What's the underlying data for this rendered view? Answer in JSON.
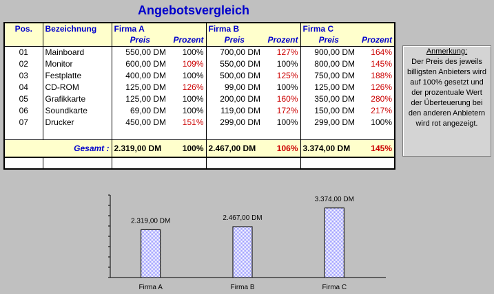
{
  "title": "Angebotsvergleich",
  "headers": {
    "pos": "Pos.",
    "bezeichnung": "Bezeichnung",
    "firmen": [
      "Firma A",
      "Firma B",
      "Firma C"
    ],
    "preis": "Preis",
    "prozent": "Prozent"
  },
  "rows": [
    {
      "pos": "01",
      "name": "Mainboard",
      "cells": [
        [
          "550,00 DM",
          "100%",
          false
        ],
        [
          "700,00 DM",
          "127%",
          true
        ],
        [
          "900,00 DM",
          "164%",
          true
        ]
      ]
    },
    {
      "pos": "02",
      "name": "Monitor",
      "cells": [
        [
          "600,00 DM",
          "109%",
          true
        ],
        [
          "550,00 DM",
          "100%",
          false
        ],
        [
          "800,00 DM",
          "145%",
          true
        ]
      ]
    },
    {
      "pos": "03",
      "name": "Festplatte",
      "cells": [
        [
          "400,00 DM",
          "100%",
          false
        ],
        [
          "500,00 DM",
          "125%",
          true
        ],
        [
          "750,00 DM",
          "188%",
          true
        ]
      ]
    },
    {
      "pos": "04",
      "name": "CD-ROM",
      "cells": [
        [
          "125,00 DM",
          "126%",
          true
        ],
        [
          "99,00 DM",
          "100%",
          false
        ],
        [
          "125,00 DM",
          "126%",
          true
        ]
      ]
    },
    {
      "pos": "05",
      "name": "Grafikkarte",
      "cells": [
        [
          "125,00 DM",
          "100%",
          false
        ],
        [
          "200,00 DM",
          "160%",
          true
        ],
        [
          "350,00 DM",
          "280%",
          true
        ]
      ]
    },
    {
      "pos": "06",
      "name": "Soundkarte",
      "cells": [
        [
          "69,00 DM",
          "100%",
          false
        ],
        [
          "119,00 DM",
          "172%",
          true
        ],
        [
          "150,00 DM",
          "217%",
          true
        ]
      ]
    },
    {
      "pos": "07",
      "name": "Drucker",
      "cells": [
        [
          "450,00 DM",
          "151%",
          true
        ],
        [
          "299,00 DM",
          "100%",
          false
        ],
        [
          "299,00 DM",
          "100%",
          false
        ]
      ]
    }
  ],
  "total": {
    "label": "Gesamt :",
    "cells": [
      [
        "2.319,00 DM",
        "100%",
        false
      ],
      [
        "2.467,00 DM",
        "106%",
        true
      ],
      [
        "3.374,00 DM",
        "145%",
        true
      ]
    ]
  },
  "note": {
    "head": "Anmerkung:",
    "body": "Der Preis des jeweils billigsten Anbieters wird auf 100% gesetzt und der prozentuale Wert der Überteuerung bei den anderen Anbietern wird rot angezeigt."
  },
  "colors": {
    "red": "#cc0000",
    "blue": "#0000cc",
    "bar": "#9999ff"
  },
  "chart_data": {
    "type": "bar",
    "categories": [
      "Firma A",
      "Firma B",
      "Firma C"
    ],
    "values": [
      2319,
      2467,
      3374
    ],
    "labels": [
      "2.319,00 DM",
      "2.467,00 DM",
      "3.374,00 DM"
    ],
    "ylim": [
      0,
      4000
    ],
    "grid": false
  }
}
